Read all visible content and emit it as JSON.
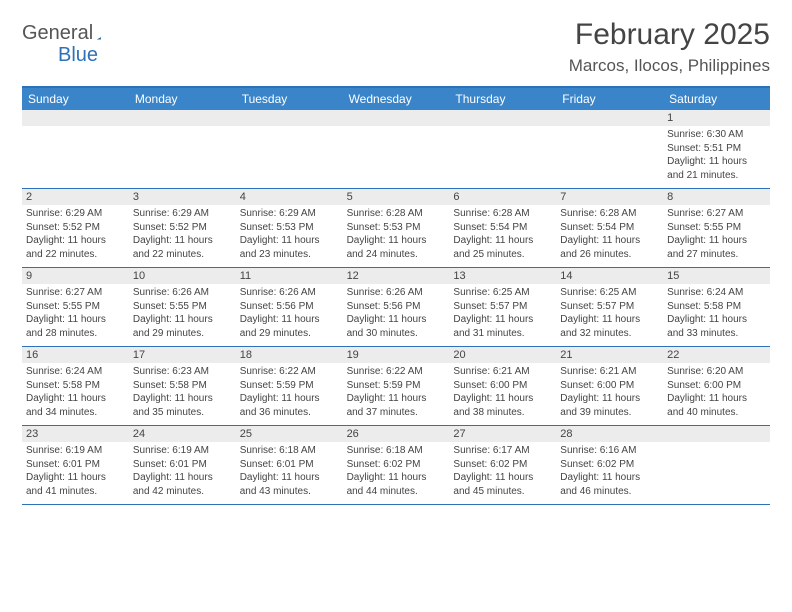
{
  "logo": {
    "general": "General",
    "blue": "Blue"
  },
  "title": "February 2025",
  "location": "Marcos, Ilocos, Philippines",
  "colors": {
    "header_bar": "#3a84c9",
    "border": "#2d72b8",
    "daynum_bg": "#ececec",
    "text": "#444444",
    "background": "#ffffff"
  },
  "dow": [
    "Sunday",
    "Monday",
    "Tuesday",
    "Wednesday",
    "Thursday",
    "Friday",
    "Saturday"
  ],
  "weeks": [
    [
      {
        "n": "",
        "sr": "",
        "ss": "",
        "dl": ""
      },
      {
        "n": "",
        "sr": "",
        "ss": "",
        "dl": ""
      },
      {
        "n": "",
        "sr": "",
        "ss": "",
        "dl": ""
      },
      {
        "n": "",
        "sr": "",
        "ss": "",
        "dl": ""
      },
      {
        "n": "",
        "sr": "",
        "ss": "",
        "dl": ""
      },
      {
        "n": "",
        "sr": "",
        "ss": "",
        "dl": ""
      },
      {
        "n": "1",
        "sr": "Sunrise: 6:30 AM",
        "ss": "Sunset: 5:51 PM",
        "dl": "Daylight: 11 hours and 21 minutes."
      }
    ],
    [
      {
        "n": "2",
        "sr": "Sunrise: 6:29 AM",
        "ss": "Sunset: 5:52 PM",
        "dl": "Daylight: 11 hours and 22 minutes."
      },
      {
        "n": "3",
        "sr": "Sunrise: 6:29 AM",
        "ss": "Sunset: 5:52 PM",
        "dl": "Daylight: 11 hours and 22 minutes."
      },
      {
        "n": "4",
        "sr": "Sunrise: 6:29 AM",
        "ss": "Sunset: 5:53 PM",
        "dl": "Daylight: 11 hours and 23 minutes."
      },
      {
        "n": "5",
        "sr": "Sunrise: 6:28 AM",
        "ss": "Sunset: 5:53 PM",
        "dl": "Daylight: 11 hours and 24 minutes."
      },
      {
        "n": "6",
        "sr": "Sunrise: 6:28 AM",
        "ss": "Sunset: 5:54 PM",
        "dl": "Daylight: 11 hours and 25 minutes."
      },
      {
        "n": "7",
        "sr": "Sunrise: 6:28 AM",
        "ss": "Sunset: 5:54 PM",
        "dl": "Daylight: 11 hours and 26 minutes."
      },
      {
        "n": "8",
        "sr": "Sunrise: 6:27 AM",
        "ss": "Sunset: 5:55 PM",
        "dl": "Daylight: 11 hours and 27 minutes."
      }
    ],
    [
      {
        "n": "9",
        "sr": "Sunrise: 6:27 AM",
        "ss": "Sunset: 5:55 PM",
        "dl": "Daylight: 11 hours and 28 minutes."
      },
      {
        "n": "10",
        "sr": "Sunrise: 6:26 AM",
        "ss": "Sunset: 5:55 PM",
        "dl": "Daylight: 11 hours and 29 minutes."
      },
      {
        "n": "11",
        "sr": "Sunrise: 6:26 AM",
        "ss": "Sunset: 5:56 PM",
        "dl": "Daylight: 11 hours and 29 minutes."
      },
      {
        "n": "12",
        "sr": "Sunrise: 6:26 AM",
        "ss": "Sunset: 5:56 PM",
        "dl": "Daylight: 11 hours and 30 minutes."
      },
      {
        "n": "13",
        "sr": "Sunrise: 6:25 AM",
        "ss": "Sunset: 5:57 PM",
        "dl": "Daylight: 11 hours and 31 minutes."
      },
      {
        "n": "14",
        "sr": "Sunrise: 6:25 AM",
        "ss": "Sunset: 5:57 PM",
        "dl": "Daylight: 11 hours and 32 minutes."
      },
      {
        "n": "15",
        "sr": "Sunrise: 6:24 AM",
        "ss": "Sunset: 5:58 PM",
        "dl": "Daylight: 11 hours and 33 minutes."
      }
    ],
    [
      {
        "n": "16",
        "sr": "Sunrise: 6:24 AM",
        "ss": "Sunset: 5:58 PM",
        "dl": "Daylight: 11 hours and 34 minutes."
      },
      {
        "n": "17",
        "sr": "Sunrise: 6:23 AM",
        "ss": "Sunset: 5:58 PM",
        "dl": "Daylight: 11 hours and 35 minutes."
      },
      {
        "n": "18",
        "sr": "Sunrise: 6:22 AM",
        "ss": "Sunset: 5:59 PM",
        "dl": "Daylight: 11 hours and 36 minutes."
      },
      {
        "n": "19",
        "sr": "Sunrise: 6:22 AM",
        "ss": "Sunset: 5:59 PM",
        "dl": "Daylight: 11 hours and 37 minutes."
      },
      {
        "n": "20",
        "sr": "Sunrise: 6:21 AM",
        "ss": "Sunset: 6:00 PM",
        "dl": "Daylight: 11 hours and 38 minutes."
      },
      {
        "n": "21",
        "sr": "Sunrise: 6:21 AM",
        "ss": "Sunset: 6:00 PM",
        "dl": "Daylight: 11 hours and 39 minutes."
      },
      {
        "n": "22",
        "sr": "Sunrise: 6:20 AM",
        "ss": "Sunset: 6:00 PM",
        "dl": "Daylight: 11 hours and 40 minutes."
      }
    ],
    [
      {
        "n": "23",
        "sr": "Sunrise: 6:19 AM",
        "ss": "Sunset: 6:01 PM",
        "dl": "Daylight: 11 hours and 41 minutes."
      },
      {
        "n": "24",
        "sr": "Sunrise: 6:19 AM",
        "ss": "Sunset: 6:01 PM",
        "dl": "Daylight: 11 hours and 42 minutes."
      },
      {
        "n": "25",
        "sr": "Sunrise: 6:18 AM",
        "ss": "Sunset: 6:01 PM",
        "dl": "Daylight: 11 hours and 43 minutes."
      },
      {
        "n": "26",
        "sr": "Sunrise: 6:18 AM",
        "ss": "Sunset: 6:02 PM",
        "dl": "Daylight: 11 hours and 44 minutes."
      },
      {
        "n": "27",
        "sr": "Sunrise: 6:17 AM",
        "ss": "Sunset: 6:02 PM",
        "dl": "Daylight: 11 hours and 45 minutes."
      },
      {
        "n": "28",
        "sr": "Sunrise: 6:16 AM",
        "ss": "Sunset: 6:02 PM",
        "dl": "Daylight: 11 hours and 46 minutes."
      },
      {
        "n": "",
        "sr": "",
        "ss": "",
        "dl": ""
      }
    ]
  ]
}
